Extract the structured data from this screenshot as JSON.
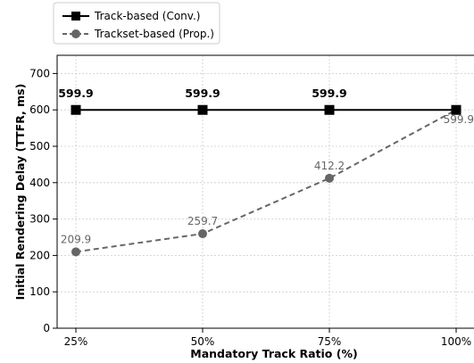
{
  "chart_data": {
    "type": "line",
    "categories": [
      "25%",
      "50%",
      "75%",
      "100%"
    ],
    "xlabel": "Mandatory Track Ratio (%)",
    "ylabel": "Initial Rendering Delay (TTFR, ms)",
    "ylim": [
      0,
      750
    ],
    "yticks": [
      "0",
      "100",
      "200",
      "300",
      "400",
      "500",
      "600",
      "700"
    ],
    "grid": true,
    "legend_position": "top-left, outside plot",
    "series": [
      {
        "name": "Track-based (Conv.)",
        "values": [
          599.9,
          599.9,
          599.9,
          599.9
        ],
        "labels": [
          "599.9",
          "599.9",
          "599.9",
          null
        ],
        "color": "#000000",
        "marker": "square",
        "line_style": "solid",
        "label_weight": "bold"
      },
      {
        "name": "Trackset-based (Prop.)",
        "values": [
          209.9,
          259.7,
          412.2,
          599.9
        ],
        "labels": [
          "209.9",
          "259.7",
          "412.2",
          "599.9"
        ],
        "color": "#666666",
        "marker": "circle",
        "line_style": "dashed",
        "label_weight": "normal"
      }
    ]
  }
}
